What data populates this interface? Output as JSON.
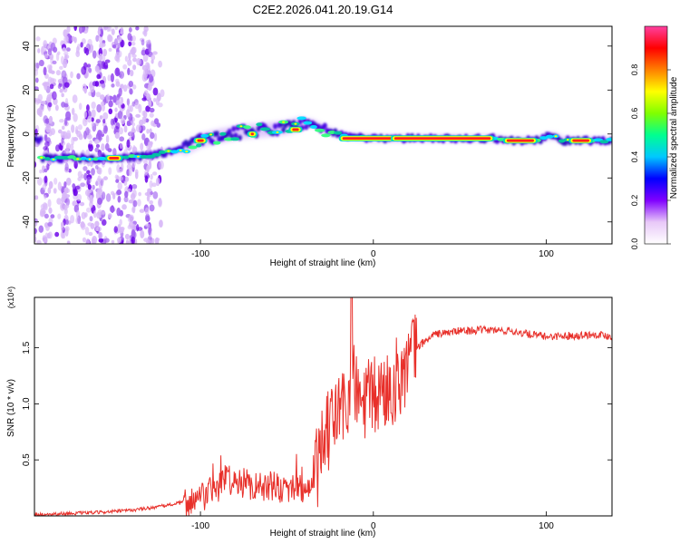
{
  "title": "C2E2.2026.041.20.19.G14",
  "colorbar": {
    "label": "Normalized spectral amplitude",
    "ticks": [
      {
        "v": 0.0,
        "label": "0.0"
      },
      {
        "v": 0.2,
        "label": "0.2"
      },
      {
        "v": 0.4,
        "label": "0.4"
      },
      {
        "v": 0.6,
        "label": "0.6"
      },
      {
        "v": 0.8,
        "label": "0.8"
      }
    ],
    "colors": [
      "#ffffff",
      "#e8c8f8",
      "#8000ff",
      "#0000ff",
      "#00c8ff",
      "#00ff90",
      "#80ff00",
      "#ffff00",
      "#ff8000",
      "#ff0000",
      "#ff40a0"
    ]
  },
  "chart_data": [
    {
      "type": "heatmap",
      "title": "C2E2.2026.041.20.19.G14",
      "xlabel": "Height of straight line (km)",
      "ylabel": "Frequency (Hz)",
      "xlim": [
        -196,
        138
      ],
      "ylim": [
        -50,
        49
      ],
      "x_ticks": [
        {
          "v": -100,
          "label": "-100"
        },
        {
          "v": 0,
          "label": "0"
        },
        {
          "v": 100,
          "label": "100"
        }
      ],
      "y_ticks": [
        {
          "v": -40,
          "label": "-40"
        },
        {
          "v": -20,
          "label": "-20"
        },
        {
          "v": 0,
          "label": "0"
        },
        {
          "v": 20,
          "label": "20"
        },
        {
          "v": 40,
          "label": "40"
        }
      ],
      "ridge": [
        {
          "x": -192,
          "y": -11
        },
        {
          "x": -170,
          "y": -11
        },
        {
          "x": -150,
          "y": -11
        },
        {
          "x": -130,
          "y": -10
        },
        {
          "x": -110,
          "y": -7
        },
        {
          "x": -100,
          "y": -3
        },
        {
          "x": -90,
          "y": -1
        },
        {
          "x": -75,
          "y": 1
        },
        {
          "x": -60,
          "y": 2
        },
        {
          "x": -50,
          "y": 3
        },
        {
          "x": -40,
          "y": 5
        },
        {
          "x": -35,
          "y": 5
        },
        {
          "x": -25,
          "y": 1
        },
        {
          "x": -15,
          "y": -1
        },
        {
          "x": 0,
          "y": -2
        },
        {
          "x": 20,
          "y": -2
        },
        {
          "x": 50,
          "y": -2
        },
        {
          "x": 70,
          "y": -2
        },
        {
          "x": 78,
          "y": -3
        },
        {
          "x": 95,
          "y": -3
        },
        {
          "x": 100,
          "y": -1
        },
        {
          "x": 105,
          "y": -1
        },
        {
          "x": 110,
          "y": -3
        },
        {
          "x": 138,
          "y": -3
        }
      ],
      "peaks": [
        {
          "x": 10,
          "y": -2,
          "w": 60
        },
        {
          "x": 40,
          "y": -2,
          "w": 60
        },
        {
          "x": 85,
          "y": -3,
          "w": 20
        },
        {
          "x": 120,
          "y": -3,
          "w": 14
        },
        {
          "x": -100,
          "y": -3,
          "w": 8
        },
        {
          "x": -70,
          "y": 0,
          "w": 6
        },
        {
          "x": -45,
          "y": 2,
          "w": 8
        },
        {
          "x": -150,
          "y": -11,
          "w": 10
        }
      ]
    },
    {
      "type": "line",
      "xlabel": "Height of straight line (km)",
      "ylabel": "SNR (10 * v/v)",
      "y_scale_label": "(x10⁴)",
      "xlim": [
        -196,
        138
      ],
      "ylim": [
        0,
        1.95
      ],
      "x_ticks": [
        {
          "v": -100,
          "label": "-100"
        },
        {
          "v": 0,
          "label": "0"
        },
        {
          "v": 100,
          "label": "100"
        }
      ],
      "y_ticks": [
        {
          "v": 0.5,
          "label": "0.5"
        },
        {
          "v": 1.0,
          "label": "1.0"
        },
        {
          "v": 1.5,
          "label": "1.5"
        }
      ],
      "series": [
        {
          "color": "#e8302a",
          "points": [
            {
              "x": -196,
              "y": 0.01
            },
            {
              "x": -180,
              "y": 0.02
            },
            {
              "x": -160,
              "y": 0.03
            },
            {
              "x": -140,
              "y": 0.05
            },
            {
              "x": -125,
              "y": 0.08
            },
            {
              "x": -110,
              "y": 0.12
            },
            {
              "x": -100,
              "y": 0.15
            },
            {
              "x": -90,
              "y": 0.25
            },
            {
              "x": -85,
              "y": 0.35
            },
            {
              "x": -80,
              "y": 0.3
            },
            {
              "x": -70,
              "y": 0.28
            },
            {
              "x": -60,
              "y": 0.26
            },
            {
              "x": -50,
              "y": 0.25
            },
            {
              "x": -40,
              "y": 0.25
            },
            {
              "x": -35,
              "y": 0.3
            },
            {
              "x": -30,
              "y": 0.55
            },
            {
              "x": -25,
              "y": 0.8
            },
            {
              "x": -20,
              "y": 0.95
            },
            {
              "x": -15,
              "y": 1.0
            },
            {
              "x": -12,
              "y": 1.2
            },
            {
              "x": -8,
              "y": 1.0
            },
            {
              "x": 0,
              "y": 1.05
            },
            {
              "x": 10,
              "y": 1.15
            },
            {
              "x": 20,
              "y": 1.35
            },
            {
              "x": 25,
              "y": 1.5
            },
            {
              "x": 35,
              "y": 1.62
            },
            {
              "x": 50,
              "y": 1.65
            },
            {
              "x": 65,
              "y": 1.66
            },
            {
              "x": 80,
              "y": 1.65
            },
            {
              "x": 90,
              "y": 1.62
            },
            {
              "x": 100,
              "y": 1.6
            },
            {
              "x": 115,
              "y": 1.61
            },
            {
              "x": 130,
              "y": 1.62
            },
            {
              "x": 138,
              "y": 1.6
            }
          ]
        }
      ]
    }
  ]
}
